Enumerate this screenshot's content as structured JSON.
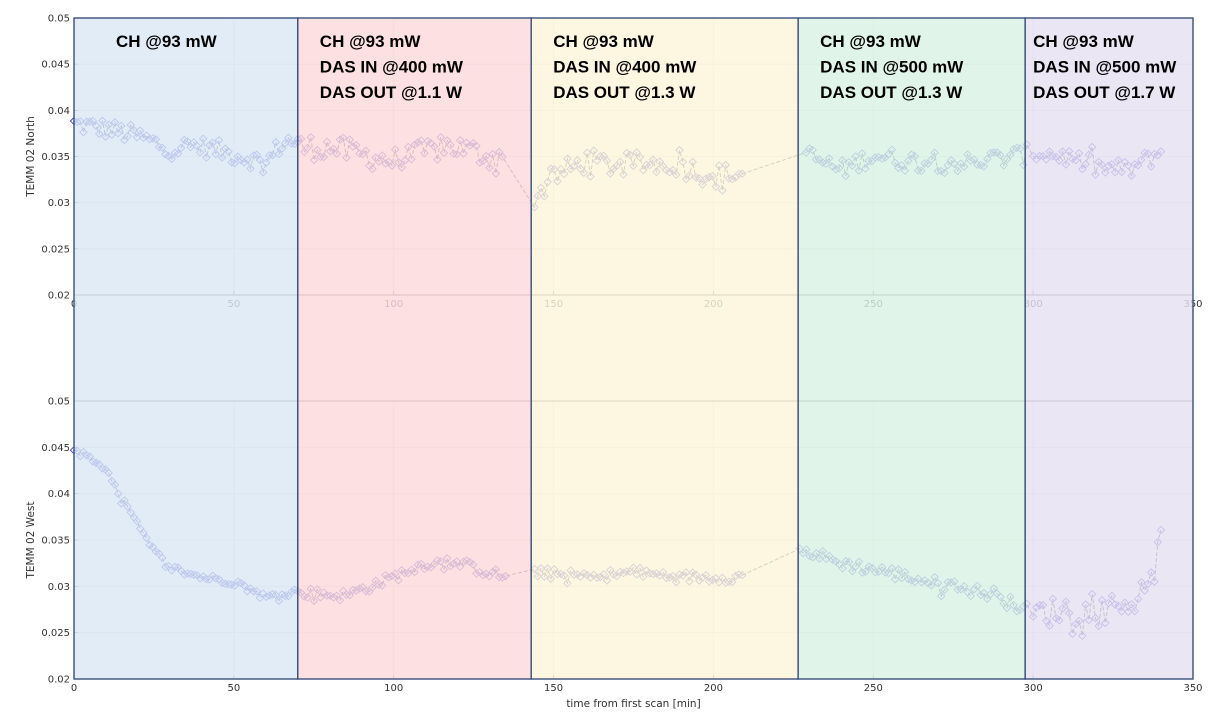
{
  "chart_data": {
    "type": "scatter",
    "xlabel": "time from first scan [min]",
    "xlim": [
      0,
      350
    ],
    "xticks": [
      0,
      50,
      100,
      150,
      200,
      250,
      300,
      350
    ],
    "regions": [
      {
        "x0": 0,
        "x1": 70,
        "color": "#dae8f5",
        "lines": [
          "CH @93 mW"
        ]
      },
      {
        "x0": 70,
        "x1": 143,
        "color": "#fdd9db",
        "lines": [
          "CH @93 mW",
          "DAS IN @400 mW",
          "DAS OUT @1.1 W"
        ]
      },
      {
        "x0": 143,
        "x1": 226.5,
        "color": "#fdf4d9",
        "lines": [
          "CH @93 mW",
          "DAS IN @400 mW",
          "DAS OUT @1.3 W"
        ]
      },
      {
        "x0": 226.5,
        "x1": 297.5,
        "color": "#dbf2e4",
        "lines": [
          "CH @93 mW",
          "DAS IN @500 mW",
          "DAS OUT @1.3 W"
        ]
      },
      {
        "x0": 297.5,
        "x1": 350,
        "color": "#e6e0f2",
        "lines": [
          "CH @93 mW",
          "DAS IN @500 mW",
          "DAS OUT @1.7 W"
        ]
      }
    ],
    "panels": [
      {
        "ylabel": "TEMM 02 North",
        "ylim": [
          0.02,
          0.05
        ],
        "yticks": [
          "0.02",
          "0.025",
          "0.03",
          "0.035",
          "0.04",
          "0.045",
          "0.05"
        ],
        "grid": true,
        "segments": [
          {
            "x0": 0,
            "x1": 70,
            "n": 72,
            "pts": [
              [
                0,
                0.0385
              ],
              [
                10,
                0.038
              ],
              [
                20,
                0.0372
              ],
              [
                30,
                0.0358
              ],
              [
                38,
                0.0362
              ],
              [
                45,
                0.0357
              ],
              [
                50,
                0.0352
              ],
              [
                55,
                0.0348
              ],
              [
                60,
                0.0342
              ],
              [
                65,
                0.0365
              ],
              [
                70,
                0.0368
              ]
            ],
            "noise": 0.0011
          },
          {
            "x0": 70,
            "x1": 134,
            "n": 64,
            "pts": [
              [
                70,
                0.036
              ],
              [
                80,
                0.036
              ],
              [
                90,
                0.0352
              ],
              [
                100,
                0.0345
              ],
              [
                110,
                0.0355
              ],
              [
                118,
                0.0362
              ],
              [
                125,
                0.0355
              ],
              [
                134,
                0.0346
              ]
            ],
            "noise": 0.0014
          },
          {
            "x0": 144,
            "x1": 209,
            "n": 64,
            "pts": [
              [
                144,
                0.0305
              ],
              [
                150,
                0.0328
              ],
              [
                160,
                0.0345
              ],
              [
                170,
                0.034
              ],
              [
                180,
                0.0343
              ],
              [
                190,
                0.034
              ],
              [
                200,
                0.0328
              ],
              [
                209,
                0.0332
              ]
            ],
            "noise": 0.0013
          },
          {
            "x0": 229,
            "x1": 298,
            "n": 68,
            "pts": [
              [
                229,
                0.0352
              ],
              [
                240,
                0.0335
              ],
              [
                250,
                0.0352
              ],
              [
                260,
                0.0345
              ],
              [
                270,
                0.0345
              ],
              [
                280,
                0.0343
              ],
              [
                290,
                0.0348
              ],
              [
                298,
                0.0352
              ]
            ],
            "noise": 0.0011
          },
          {
            "x0": 300,
            "x1": 340,
            "n": 40,
            "pts": [
              [
                300,
                0.0355
              ],
              [
                310,
                0.035
              ],
              [
                320,
                0.0338
              ],
              [
                330,
                0.0335
              ],
              [
                340,
                0.0355
              ]
            ],
            "noise": 0.0011
          }
        ]
      },
      {
        "ylabel": "TEMM 02 West",
        "ylim": [
          0.02,
          0.05
        ],
        "yticks": [
          "0.02",
          "0.025",
          "0.03",
          "0.035",
          "0.04",
          "0.045",
          "0.05"
        ],
        "grid": true,
        "segments": [
          {
            "x0": 0,
            "x1": 70,
            "n": 72,
            "pts": [
              [
                0,
                0.0448
              ],
              [
                5,
                0.0438
              ],
              [
                10,
                0.0428
              ],
              [
                12,
                0.041
              ],
              [
                15,
                0.0395
              ],
              [
                20,
                0.0365
              ],
              [
                25,
                0.0338
              ],
              [
                30,
                0.032
              ],
              [
                40,
                0.031
              ],
              [
                50,
                0.0305
              ],
              [
                60,
                0.0288
              ],
              [
                70,
                0.0295
              ]
            ],
            "noise": 0.0004
          },
          {
            "x0": 71,
            "x1": 135,
            "n": 64,
            "pts": [
              [
                71,
                0.0293
              ],
              [
                85,
                0.029
              ],
              [
                100,
                0.031
              ],
              [
                110,
                0.0325
              ],
              [
                120,
                0.0325
              ],
              [
                130,
                0.0315
              ],
              [
                135,
                0.031
              ]
            ],
            "noise": 0.0006
          },
          {
            "x0": 144,
            "x1": 209,
            "n": 64,
            "pts": [
              [
                144,
                0.0315
              ],
              [
                160,
                0.031
              ],
              [
                175,
                0.0315
              ],
              [
                190,
                0.031
              ],
              [
                200,
                0.031
              ],
              [
                209,
                0.031
              ]
            ],
            "noise": 0.0006
          },
          {
            "x0": 227,
            "x1": 298,
            "n": 70,
            "pts": [
              [
                227,
                0.034
              ],
              [
                240,
                0.0325
              ],
              [
                255,
                0.0315
              ],
              [
                270,
                0.0303
              ],
              [
                285,
                0.0293
              ],
              [
                298,
                0.0275
              ]
            ],
            "noise": 0.0007
          },
          {
            "x0": 300,
            "x1": 340,
            "n": 40,
            "pts": [
              [
                300,
                0.027
              ],
              [
                310,
                0.0275
              ],
              [
                320,
                0.0272
              ],
              [
                330,
                0.0285
              ],
              [
                335,
                0.028
              ],
              [
                340,
                0.0348
              ]
            ],
            "noise": 0.0016
          }
        ]
      }
    ]
  }
}
